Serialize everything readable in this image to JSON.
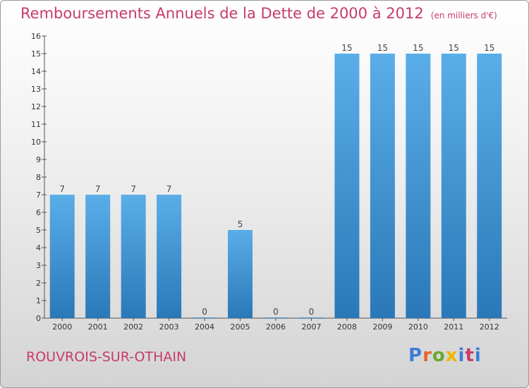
{
  "title": "Remboursements Annuels de la Dette de 2000 à 2012",
  "unit_note": "(en milliers d'€)",
  "commune": "ROUVROIS-SUR-OTHAIN",
  "logo": {
    "text": "Proxiti",
    "colors": [
      "#3d7fd6",
      "#e8642c",
      "#6aa82f",
      "#f0b400",
      "#3d7fd6",
      "#c63b6e",
      "#3d7fd6"
    ]
  },
  "colors": {
    "title": "#c63b6e",
    "bar_light": "#5aaee8",
    "bar_dark": "#2a78b8",
    "axis": "#555555"
  },
  "chart_data": {
    "type": "bar",
    "categories": [
      "2000",
      "2001",
      "2002",
      "2003",
      "2004",
      "2005",
      "2006",
      "2007",
      "2008",
      "2009",
      "2010",
      "2011",
      "2012"
    ],
    "values": [
      7,
      7,
      7,
      7,
      0,
      5,
      0,
      0,
      15,
      15,
      15,
      15,
      15
    ],
    "value_labels": [
      "7",
      "7",
      "7",
      "7",
      "0",
      "5",
      "0",
      "0",
      "15",
      "15",
      "15",
      "15",
      "15"
    ],
    "yticks": [
      0,
      1,
      2,
      3,
      4,
      5,
      6,
      7,
      8,
      9,
      10,
      11,
      12,
      13,
      14,
      15,
      16
    ],
    "ylim": [
      0,
      16
    ],
    "grid": false,
    "legend": "none"
  }
}
